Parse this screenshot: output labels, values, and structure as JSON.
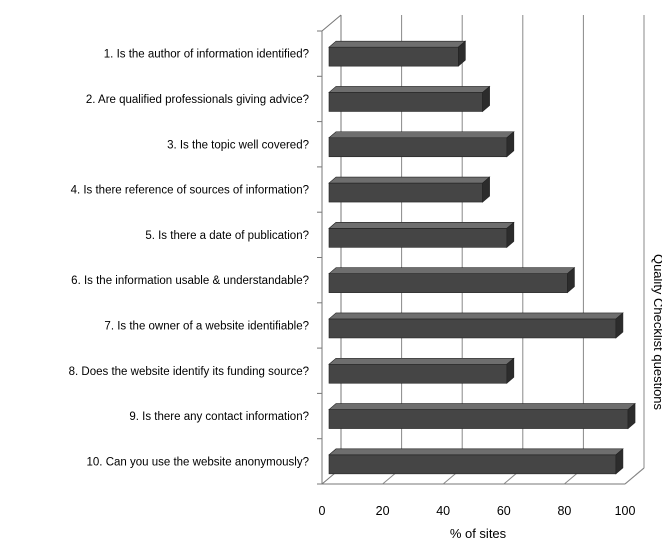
{
  "chart_data": {
    "type": "bar",
    "orientation": "horizontal",
    "style": "3d",
    "categories": [
      "1. Is the author of information identified?",
      "2. Are qualified professionals giving advice?",
      "3. Is the topic well covered?",
      "4. Is there reference of sources of information?",
      "5. Is there a date of publication?",
      "6. Is the information usable & understandable?",
      "7. Is the owner of a website identifiable?",
      "8. Does the website identify its funding source?",
      "9. Is there any contact information?",
      "10. Can you use the website anonymously?"
    ],
    "values": [
      45,
      53,
      61,
      53,
      61,
      81,
      97,
      61,
      101,
      97
    ],
    "xlabel": "% of sites",
    "ylabel": "Quality Checklist questions",
    "xlim": [
      0,
      100
    ],
    "xticks": [
      0,
      20,
      40,
      60,
      80,
      100
    ],
    "grid": true,
    "bar_color": "#444444"
  }
}
